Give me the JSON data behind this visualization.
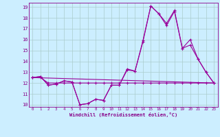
{
  "xlabel": "Windchill (Refroidissement éolien,°C)",
  "bg_color": "#cceeff",
  "grid_color": "#aacccc",
  "line_color": "#990099",
  "xlim": [
    -0.5,
    23.5
  ],
  "ylim": [
    9.8,
    19.4
  ],
  "yticks": [
    10,
    11,
    12,
    13,
    14,
    15,
    16,
    17,
    18,
    19
  ],
  "xticks": [
    0,
    1,
    2,
    3,
    4,
    5,
    6,
    7,
    8,
    9,
    10,
    11,
    12,
    13,
    14,
    15,
    16,
    17,
    18,
    19,
    20,
    21,
    22,
    23
  ],
  "series1_x": [
    0,
    1,
    2,
    3,
    4,
    5,
    6,
    7,
    8,
    9,
    10,
    11,
    12,
    13,
    14,
    15,
    16,
    17,
    18,
    19,
    20,
    21,
    22,
    23
  ],
  "series1_y": [
    12.5,
    12.6,
    11.8,
    11.9,
    12.2,
    12.1,
    10.0,
    10.1,
    10.5,
    10.4,
    11.8,
    11.8,
    13.3,
    13.1,
    15.9,
    19.1,
    18.4,
    17.5,
    18.7,
    15.2,
    16.0,
    14.2,
    13.0,
    12.0
  ],
  "series2_x": [
    0,
    1,
    2,
    3,
    4,
    5,
    6,
    7,
    8,
    9,
    10,
    11,
    12,
    13,
    14,
    15,
    16,
    17,
    18,
    19,
    20,
    21,
    22,
    23
  ],
  "series2_y": [
    12.5,
    12.5,
    12.0,
    12.0,
    12.0,
    12.0,
    12.0,
    12.0,
    12.0,
    12.0,
    12.0,
    12.0,
    12.0,
    12.0,
    12.0,
    12.0,
    12.0,
    12.0,
    12.0,
    12.0,
    12.0,
    12.0,
    12.0,
    12.0
  ],
  "series3_x": [
    0,
    23
  ],
  "series3_y": [
    12.5,
    12.0
  ],
  "series4_x": [
    0,
    1,
    2,
    3,
    4,
    5,
    6,
    7,
    8,
    9,
    10,
    11,
    12,
    13,
    14,
    15,
    16,
    17,
    18,
    19,
    20,
    21,
    22,
    23
  ],
  "series4_y": [
    12.5,
    12.6,
    11.8,
    11.9,
    12.2,
    12.1,
    10.0,
    10.1,
    10.5,
    10.4,
    11.8,
    11.8,
    13.2,
    13.1,
    15.8,
    19.1,
    18.4,
    17.3,
    18.6,
    15.2,
    15.5,
    14.2,
    13.0,
    12.0
  ]
}
